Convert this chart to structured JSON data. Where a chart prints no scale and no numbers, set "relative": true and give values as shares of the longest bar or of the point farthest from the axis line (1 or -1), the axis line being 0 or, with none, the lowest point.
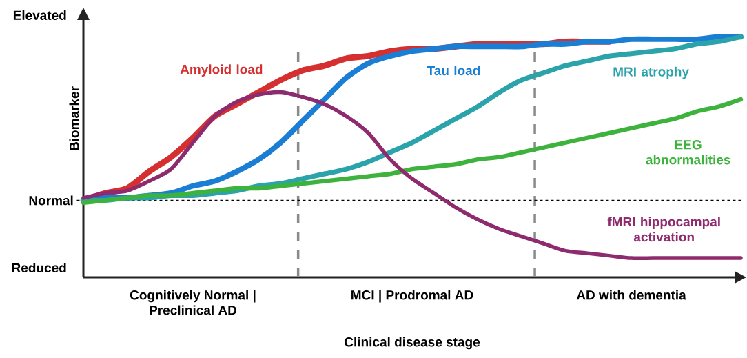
{
  "chart_data": {
    "type": "line",
    "relative": true,
    "xlabel": "Clinical disease stage",
    "ylabel": "Biomarker",
    "categories": [
      null,
      null,
      null,
      null,
      null,
      "Cognitively Normal | Preclinical AD",
      null,
      null,
      null,
      null,
      null,
      null,
      null,
      null,
      null,
      "MCI | Prodromal AD",
      null,
      null,
      null,
      null,
      null,
      null,
      null,
      null,
      null,
      "AD with dementia",
      null,
      null,
      null,
      null,
      null
    ],
    "ref_lines": [
      {
        "axis": "y",
        "value": 0.32,
        "label": "Normal",
        "color": "#000000",
        "line_style": "dotted"
      }
    ],
    "annotations": [
      "Elevated",
      "Reduced"
    ],
    "line_style": "solid",
    "marker": "none",
    "series": [
      {
        "name": "Amyloid load",
        "color": "#d62f2f",
        "values": [
          0.32,
          0.35,
          0.37,
          0.44,
          0.5,
          0.58,
          0.67,
          0.72,
          0.77,
          0.82,
          0.86,
          0.88,
          0.91,
          0.92,
          0.94,
          0.95,
          0.95,
          0.96,
          0.97,
          0.97,
          0.97,
          0.97,
          0.98,
          0.98,
          0.98,
          null,
          null,
          null,
          null,
          null,
          null
        ]
      },
      {
        "name": "Tau load",
        "color": "#1a7fd4",
        "values": [
          0.32,
          0.33,
          0.33,
          0.34,
          0.35,
          0.38,
          0.4,
          0.44,
          0.49,
          0.56,
          0.65,
          0.74,
          0.83,
          0.89,
          0.92,
          0.94,
          0.95,
          0.96,
          0.96,
          0.96,
          0.96,
          0.97,
          0.97,
          0.98,
          0.98,
          0.99,
          0.99,
          0.99,
          0.99,
          1,
          1
        ]
      },
      {
        "name": "MRI atrophy",
        "color": "#2aa3aa",
        "values": [
          0.32,
          0.32,
          0.33,
          0.33,
          0.34,
          0.34,
          0.35,
          0.36,
          0.38,
          0.39,
          0.41,
          0.43,
          0.45,
          0.48,
          0.52,
          0.56,
          0.61,
          0.66,
          0.71,
          0.77,
          0.82,
          0.85,
          0.88,
          0.9,
          0.92,
          0.93,
          0.94,
          0.95,
          0.97,
          0.98,
          1
        ]
      },
      {
        "name": "EEG abnormalities",
        "color": "#3db33d",
        "values": [
          0.31,
          0.32,
          0.33,
          0.34,
          0.34,
          0.35,
          0.36,
          0.37,
          0.37,
          0.38,
          0.39,
          0.4,
          0.41,
          0.42,
          0.43,
          0.45,
          0.46,
          0.47,
          0.49,
          0.5,
          0.52,
          0.54,
          0.56,
          0.58,
          0.6,
          0.62,
          0.64,
          0.66,
          0.69,
          0.71,
          0.74
        ]
      },
      {
        "name": "fMRI hippocampal activation",
        "color": "#8e2a6e",
        "values": [
          0.33,
          0.35,
          0.36,
          0.4,
          0.45,
          0.56,
          0.67,
          0.73,
          0.76,
          0.77,
          0.75,
          0.72,
          0.67,
          0.6,
          0.49,
          0.41,
          0.35,
          0.29,
          0.24,
          0.2,
          0.17,
          0.14,
          0.11,
          0.1,
          0.09,
          0.08,
          0.08,
          0.08,
          0.08,
          0.08,
          0.08
        ]
      }
    ]
  }
}
